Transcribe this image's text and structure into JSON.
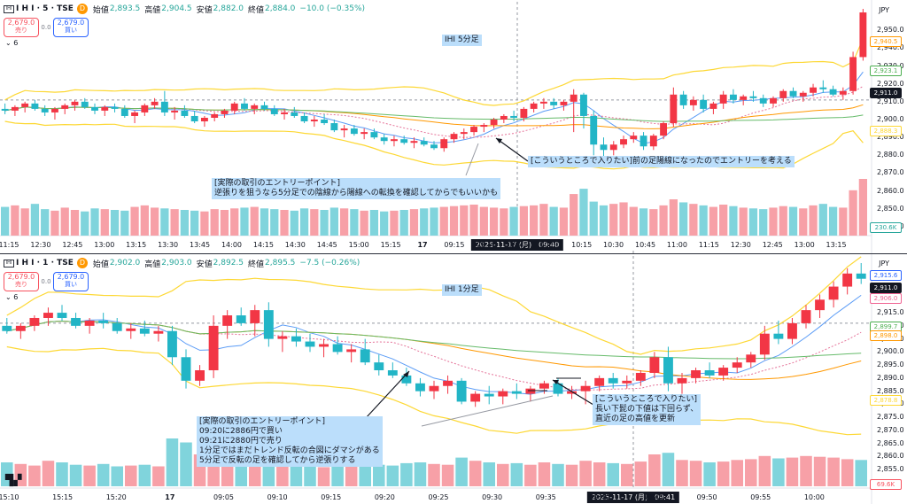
{
  "top": {
    "header": {
      "symbol": "I H I · 5 · TSE",
      "badge": "D",
      "open_label": "始値",
      "open": "2,893.5",
      "high_label": "高値",
      "high": "2,904.5",
      "low_label": "安値",
      "low": "2,882.0",
      "close_label": "終値",
      "close": "2,884.0",
      "change": "−10.0 (−0.35%)"
    },
    "trade": {
      "sell_price": "2,679.0",
      "sell_label": "売り",
      "spread": "0.0",
      "buy_price": "2,679.0",
      "buy_label": "買い"
    },
    "indicator_count": "6",
    "currency": "JPY",
    "title_tag": "IHI 5分足",
    "crosshair_time": "2025-11-17 (月)　09:40",
    "annotations": {
      "entry": "[実際の取引のエントリーポイント]\n逆張りを狙うなら5分足での陰線から陽線への転換を確認してからでもいいかも",
      "want": "[こういうところで入りたい]前の足陽線になったのでエントリーを考える"
    },
    "price_tags": [
      {
        "value": "2,940.5",
        "color": "#ff9800"
      },
      {
        "value": "2,923.1",
        "color": "#4caf50"
      },
      {
        "value": "2,911.0",
        "color": "#131722"
      },
      {
        "value": "2,888.3",
        "color": "#fdd835"
      },
      {
        "value": "230.6K",
        "color": "#26a69a"
      }
    ]
  },
  "bottom": {
    "header": {
      "symbol": "I H I · 1 · TSE",
      "badge": "D",
      "open_label": "始値",
      "open": "2,902.0",
      "high_label": "高値",
      "high": "2,903.0",
      "low_label": "安値",
      "low": "2,892.5",
      "close_label": "終値",
      "close": "2,895.5",
      "change": "−7.5 (−0.26%)"
    },
    "trade": {
      "sell_price": "2,679.0",
      "sell_label": "売り",
      "spread": "0.0",
      "buy_price": "2,679.0",
      "buy_label": "買い"
    },
    "indicator_count": "6",
    "currency": "JPY",
    "title_tag": "IHI 1分足",
    "crosshair_time": "2025-11-17 (月)　09:41",
    "annotations": {
      "entry": "[実際の取引のエントリーポイント]\n09:20に2886円で買い\n09:21に2880円で売り\n1分足ではまだトレンド反転の合図にダマシがある\n5分足で反転の足を確認してから逆張りする",
      "want": "[こういうところで入りたい]\n長い下髭の下値は下回らず、\n直近の足の高値を更新"
    },
    "price_tags": [
      {
        "value": "2,915.6",
        "color": "#2962ff"
      },
      {
        "value": "2,911.0",
        "color": "#131722"
      },
      {
        "value": "2,906.0",
        "color": "#f06292"
      },
      {
        "value": "2,899.7",
        "color": "#4caf50"
      },
      {
        "value": "2,898.0",
        "color": "#ff9800"
      },
      {
        "value": "2,878.8",
        "color": "#fdd835"
      },
      {
        "value": "69.6K",
        "color": "#f7525f"
      }
    ]
  },
  "chart_data": [
    {
      "type": "candlestick",
      "title": "IHI 5分足",
      "ylim": [
        2838,
        2962
      ],
      "y_ticks": [
        2840,
        2850,
        2860,
        2870,
        2880,
        2890,
        2900,
        2910,
        2920,
        2930,
        2940,
        2950
      ],
      "x_tick_labels": [
        "11:15",
        "12:30",
        "12:45",
        "13:00",
        "13:15",
        "13:30",
        "13:45",
        "14:00",
        "14:15",
        "14:30",
        "14:45",
        "15:00",
        "15:15",
        "17",
        "09:15",
        "09:30",
        "09:45",
        "10:00",
        "10:15",
        "10:30",
        "10:45",
        "11:00",
        "11:15",
        "12:30",
        "12:45",
        "13:00",
        "13:15"
      ],
      "candles": [
        [
          2906,
          2909,
          2903,
          2905
        ],
        [
          2905,
          2908,
          2902,
          2907
        ],
        [
          2907,
          2910,
          2904,
          2909
        ],
        [
          2909,
          2911,
          2905,
          2906
        ],
        [
          2906,
          2908,
          2902,
          2904
        ],
        [
          2904,
          2907,
          2900,
          2906
        ],
        [
          2906,
          2909,
          2903,
          2908
        ],
        [
          2908,
          2911,
          2905,
          2910
        ],
        [
          2910,
          2912,
          2906,
          2907
        ],
        [
          2907,
          2909,
          2903,
          2905
        ],
        [
          2905,
          2908,
          2902,
          2907
        ],
        [
          2907,
          2909,
          2904,
          2906
        ],
        [
          2906,
          2908,
          2901,
          2902
        ],
        [
          2902,
          2905,
          2898,
          2904
        ],
        [
          2904,
          2909,
          2902,
          2908
        ],
        [
          2908,
          2912,
          2906,
          2910
        ],
        [
          2910,
          2916,
          2902,
          2904
        ],
        [
          2904,
          2907,
          2900,
          2905
        ],
        [
          2905,
          2908,
          2901,
          2902
        ],
        [
          2902,
          2905,
          2898,
          2899
        ],
        [
          2899,
          2902,
          2896,
          2901
        ],
        [
          2901,
          2904,
          2899,
          2903
        ],
        [
          2903,
          2906,
          2901,
          2905
        ],
        [
          2905,
          2910,
          2903,
          2909
        ],
        [
          2909,
          2912,
          2905,
          2906
        ],
        [
          2906,
          2909,
          2903,
          2908
        ],
        [
          2908,
          2910,
          2905,
          2906
        ],
        [
          2906,
          2908,
          2902,
          2903
        ],
        [
          2903,
          2906,
          2900,
          2904
        ],
        [
          2904,
          2907,
          2901,
          2902
        ],
        [
          2902,
          2904,
          2898,
          2899
        ],
        [
          2899,
          2902,
          2896,
          2900
        ],
        [
          2900,
          2903,
          2897,
          2898
        ],
        [
          2898,
          2900,
          2893,
          2894
        ],
        [
          2894,
          2897,
          2890,
          2895
        ],
        [
          2895,
          2897,
          2891,
          2892
        ],
        [
          2892,
          2895,
          2889,
          2893
        ],
        [
          2893,
          2895,
          2889,
          2890
        ],
        [
          2890,
          2892,
          2886,
          2888
        ],
        [
          2888,
          2891,
          2885,
          2889
        ],
        [
          2889,
          2891,
          2886,
          2887
        ],
        [
          2887,
          2890,
          2884,
          2888
        ],
        [
          2888,
          2890,
          2885,
          2886
        ],
        [
          2886,
          2888,
          2883,
          2884
        ],
        [
          2884,
          2890,
          2882,
          2889
        ],
        [
          2889,
          2893,
          2887,
          2892
        ],
        [
          2892,
          2895,
          2889,
          2893
        ],
        [
          2893,
          2897,
          2891,
          2896
        ],
        [
          2896,
          2898,
          2893,
          2897
        ],
        [
          2897,
          2901,
          2895,
          2900
        ],
        [
          2900,
          2903,
          2898,
          2902
        ],
        [
          2902,
          2905,
          2899,
          2901
        ],
        [
          2901,
          2907,
          2899,
          2906
        ],
        [
          2906,
          2910,
          2904,
          2909
        ],
        [
          2909,
          2912,
          2906,
          2910
        ],
        [
          2910,
          2912,
          2906,
          2908
        ],
        [
          2908,
          2911,
          2905,
          2910
        ],
        [
          2910,
          2917,
          2893,
          2914
        ],
        [
          2914,
          2915,
          2895,
          2902
        ],
        [
          2902,
          2905,
          2880,
          2886
        ],
        [
          2886,
          2890,
          2879,
          2883
        ],
        [
          2883,
          2888,
          2880,
          2886
        ],
        [
          2886,
          2891,
          2884,
          2889
        ],
        [
          2889,
          2893,
          2887,
          2891
        ],
        [
          2891,
          2893,
          2883,
          2885
        ],
        [
          2885,
          2892,
          2883,
          2891
        ],
        [
          2891,
          2899,
          2889,
          2898
        ],
        [
          2898,
          2918,
          2896,
          2914
        ],
        [
          2914,
          2916,
          2906,
          2908
        ],
        [
          2908,
          2913,
          2905,
          2911
        ],
        [
          2911,
          2914,
          2904,
          2906
        ],
        [
          2906,
          2910,
          2903,
          2909
        ],
        [
          2909,
          2916,
          2906,
          2914
        ],
        [
          2914,
          2917,
          2909,
          2911
        ],
        [
          2911,
          2914,
          2908,
          2913
        ],
        [
          2913,
          2916,
          2910,
          2912
        ],
        [
          2912,
          2914,
          2907,
          2909
        ],
        [
          2909,
          2913,
          2907,
          2912
        ],
        [
          2912,
          2917,
          2910,
          2916
        ],
        [
          2916,
          2918,
          2912,
          2913
        ],
        [
          2913,
          2916,
          2910,
          2915
        ],
        [
          2915,
          2920,
          2913,
          2918
        ],
        [
          2918,
          2922,
          2915,
          2917
        ],
        [
          2917,
          2919,
          2913,
          2914
        ],
        [
          2914,
          2918,
          2911,
          2916
        ],
        [
          2916,
          2938,
          2914,
          2935
        ],
        [
          2935,
          2962,
          2933,
          2960
        ]
      ],
      "volume": [
        38,
        40,
        36,
        42,
        35,
        33,
        37,
        34,
        32,
        36,
        35,
        34,
        33,
        38,
        40,
        37,
        36,
        35,
        34,
        33,
        32,
        35,
        34,
        36,
        37,
        38,
        36,
        35,
        34,
        33,
        36,
        35,
        34,
        37,
        36,
        35,
        33,
        34,
        32,
        33,
        34,
        35,
        36,
        37,
        38,
        39,
        40,
        41,
        38,
        37,
        36,
        38,
        39,
        40,
        42,
        38,
        37,
        55,
        62,
        45,
        40,
        42,
        44,
        38,
        36,
        35,
        40,
        48,
        44,
        42,
        40,
        38,
        41,
        39,
        37,
        36,
        35,
        37,
        39,
        38,
        36,
        40,
        42,
        38,
        37,
        60,
        75
      ]
    },
    {
      "type": "candlestick",
      "title": "IHI 1分足",
      "ylim": [
        2851,
        2934
      ],
      "y_ticks": [
        2855,
        2860,
        2865,
        2870,
        2875,
        2880,
        2885,
        2890,
        2895,
        2900,
        2905,
        2910,
        2915
      ],
      "x_tick_labels": [
        "15:10",
        "15:15",
        "15:20",
        "17",
        "09:05",
        "09:10",
        "09:15",
        "09:20",
        "09:25",
        "09:30",
        "09:35",
        "09:40",
        "09:45",
        "09:50",
        "09:55",
        "10:00"
      ],
      "candles": [
        [
          2910,
          2913,
          2907,
          2908
        ],
        [
          2908,
          2911,
          2905,
          2910
        ],
        [
          2910,
          2914,
          2908,
          2913
        ],
        [
          2913,
          2917,
          2910,
          2915
        ],
        [
          2915,
          2918,
          2912,
          2913
        ],
        [
          2913,
          2915,
          2909,
          2910
        ],
        [
          2910,
          2913,
          2907,
          2912
        ],
        [
          2912,
          2915,
          2909,
          2911
        ],
        [
          2911,
          2913,
          2907,
          2908
        ],
        [
          2908,
          2911,
          2905,
          2909
        ],
        [
          2909,
          2912,
          2906,
          2907
        ],
        [
          2907,
          2910,
          2904,
          2908
        ],
        [
          2908,
          2910,
          2895,
          2898
        ],
        [
          2898,
          2901,
          2886,
          2889
        ],
        [
          2889,
          2895,
          2887,
          2893
        ],
        [
          2893,
          2914,
          2890,
          2910
        ],
        [
          2910,
          2916,
          2905,
          2914
        ],
        [
          2914,
          2917,
          2910,
          2911
        ],
        [
          2911,
          2918,
          2906,
          2916
        ],
        [
          2916,
          2919,
          2902,
          2905
        ],
        [
          2905,
          2908,
          2900,
          2906
        ],
        [
          2906,
          2909,
          2902,
          2904
        ],
        [
          2904,
          2907,
          2900,
          2902
        ],
        [
          2902,
          2905,
          2898,
          2903
        ],
        [
          2903,
          2906,
          2899,
          2900
        ],
        [
          2900,
          2903,
          2896,
          2901
        ],
        [
          2901,
          2905,
          2895,
          2896
        ],
        [
          2896,
          2899,
          2891,
          2893
        ],
        [
          2893,
          2896,
          2890,
          2891
        ],
        [
          2891,
          2894,
          2887,
          2888
        ],
        [
          2888,
          2890,
          2883,
          2885
        ],
        [
          2885,
          2889,
          2882,
          2887
        ],
        [
          2887,
          2891,
          2884,
          2889
        ],
        [
          2889,
          2890,
          2880,
          2881
        ],
        [
          2881,
          2885,
          2879,
          2884
        ],
        [
          2884,
          2887,
          2880,
          2883
        ],
        [
          2883,
          2886,
          2880,
          2885
        ],
        [
          2885,
          2888,
          2882,
          2884
        ],
        [
          2884,
          2887,
          2881,
          2886
        ],
        [
          2886,
          2889,
          2884,
          2888
        ],
        [
          2888,
          2890,
          2883,
          2884
        ],
        [
          2884,
          2887,
          2882,
          2885
        ],
        [
          2885,
          2889,
          2880,
          2887
        ],
        [
          2887,
          2891,
          2885,
          2890
        ],
        [
          2890,
          2892,
          2886,
          2888
        ],
        [
          2888,
          2891,
          2886,
          2889
        ],
        [
          2889,
          2893,
          2887,
          2892
        ],
        [
          2892,
          2900,
          2890,
          2898
        ],
        [
          2898,
          2902,
          2885,
          2888
        ],
        [
          2888,
          2892,
          2884,
          2890
        ],
        [
          2890,
          2894,
          2888,
          2893
        ],
        [
          2893,
          2896,
          2890,
          2891
        ],
        [
          2891,
          2895,
          2889,
          2894
        ],
        [
          2894,
          2898,
          2892,
          2896
        ],
        [
          2896,
          2900,
          2894,
          2899
        ],
        [
          2899,
          2910,
          2897,
          2907
        ],
        [
          2907,
          2912,
          2903,
          2905
        ],
        [
          2905,
          2913,
          2903,
          2911
        ],
        [
          2911,
          2918,
          2909,
          2916
        ],
        [
          2916,
          2922,
          2913,
          2920
        ],
        [
          2920,
          2927,
          2917,
          2925
        ],
        [
          2925,
          2932,
          2922,
          2930
        ],
        [
          2930,
          2934,
          2926,
          2928
        ]
      ],
      "volume": [
        30,
        28,
        26,
        32,
        30,
        27,
        26,
        28,
        25,
        26,
        27,
        25,
        60,
        55,
        40,
        45,
        35,
        30,
        32,
        28,
        26,
        25,
        27,
        24,
        26,
        25,
        28,
        27,
        26,
        29,
        30,
        28,
        27,
        36,
        32,
        30,
        28,
        29,
        27,
        30,
        28,
        27,
        32,
        30,
        29,
        28,
        31,
        40,
        42,
        33,
        32,
        30,
        31,
        33,
        34,
        38,
        35,
        36,
        38,
        37,
        36,
        34,
        33
      ]
    }
  ]
}
